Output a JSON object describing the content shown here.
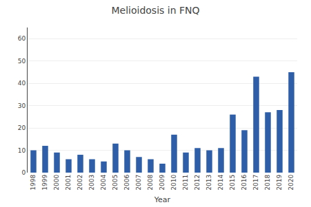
{
  "chart_data": {
    "type": "bar",
    "title": "Melioidosis in FNQ",
    "xlabel": "Year",
    "categories": [
      "1998",
      "1999",
      "2000",
      "2001",
      "2002",
      "2003",
      "2004",
      "2005",
      "2006",
      "2007",
      "2008",
      "2009",
      "2010",
      "2011",
      "2012",
      "2013",
      "2014",
      "2015",
      "2016",
      "2017",
      "2018",
      "2019",
      "2020"
    ],
    "values": [
      10,
      12,
      9,
      6,
      8,
      6,
      5,
      13,
      10,
      7,
      6,
      4,
      17,
      9,
      11,
      10,
      11,
      26,
      19,
      43,
      27,
      28,
      45
    ],
    "color": "#2e5ea8",
    "ylim": [
      0,
      65
    ],
    "yticks": [
      0,
      10,
      20,
      30,
      40,
      50,
      60
    ],
    "grid": true
  }
}
